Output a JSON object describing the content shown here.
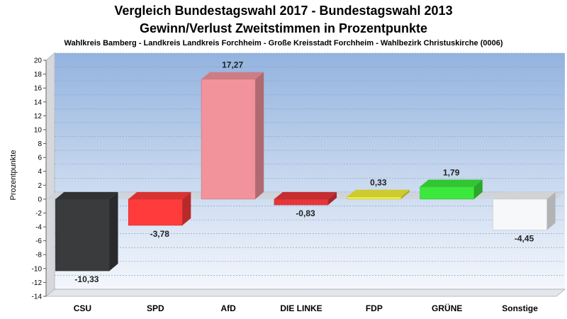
{
  "chart_data": {
    "type": "bar",
    "title": "Vergleich Bundestagswahl 2017 - Bundestagswahl 2013",
    "subtitle": "Gewinn/Verlust Zweitstimmen in Prozentpunkte",
    "subtitle2": "Wahlkreis Bamberg - Landkreis Landkreis Forchheim - Große Kreisstadt Forchheim - Wahlbezirk Christuskirche (0006)",
    "ylabel": "Prozentpunkte",
    "xlabel": "",
    "ylim": [
      -14,
      20
    ],
    "ytick_step": 2,
    "grid": true,
    "categories": [
      "CSU",
      "SPD",
      "AfD",
      "DIE LINKE",
      "FDP",
      "GRÜNE",
      "Sonstige"
    ],
    "values": [
      -10.33,
      -3.78,
      17.27,
      -0.83,
      0.33,
      1.79,
      -4.45
    ],
    "value_labels": [
      "-10,33",
      "-3,78",
      "17,27",
      "-0,83",
      "0,33",
      "1,79",
      "-4,45"
    ],
    "colors": [
      "#3a3b3d",
      "#ff3b3b",
      "#f2939b",
      "#e8353a",
      "#f2ef3a",
      "#3ce83c",
      "#f7f8fa"
    ]
  }
}
